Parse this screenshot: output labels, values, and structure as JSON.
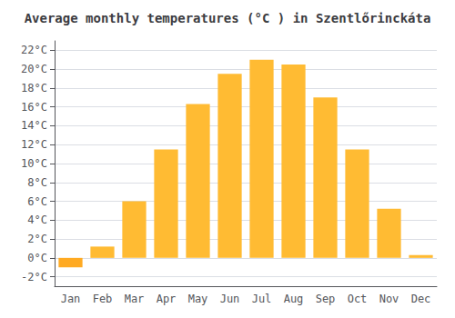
{
  "chart_data": {
    "type": "bar",
    "title": "Average monthly temperatures (°C ) in Szentlőrinckáta",
    "categories": [
      "Jan",
      "Feb",
      "Mar",
      "Apr",
      "May",
      "Jun",
      "Jul",
      "Aug",
      "Sep",
      "Oct",
      "Nov",
      "Dec"
    ],
    "values": [
      -1.0,
      1.2,
      6.0,
      11.5,
      16.3,
      19.5,
      21.0,
      20.5,
      17.0,
      11.5,
      5.2,
      0.3
    ],
    "colors": [
      "#FFAA22",
      "#FFBB33",
      "#FFBB33",
      "#FFBB33",
      "#FFBB33",
      "#FFBB33",
      "#FFBB33",
      "#FFBB33",
      "#FFBB33",
      "#FFBB33",
      "#FFBB33",
      "#FFBB33"
    ],
    "ylim": [
      -3,
      23
    ],
    "yticks": [
      {
        "value": -2,
        "label": "-2°C"
      },
      {
        "value": 0,
        "label": "0°C"
      },
      {
        "value": 2,
        "label": "2°C"
      },
      {
        "value": 4,
        "label": "4°C"
      },
      {
        "value": 6,
        "label": "6°C"
      },
      {
        "value": 8,
        "label": "8°C"
      },
      {
        "value": 10,
        "label": "10°C"
      },
      {
        "value": 12,
        "label": "12°C"
      },
      {
        "value": 14,
        "label": "14°C"
      },
      {
        "value": 16,
        "label": "16°C"
      },
      {
        "value": 18,
        "label": "18°C"
      },
      {
        "value": 20,
        "label": "20°C"
      },
      {
        "value": 22,
        "label": "22°C"
      }
    ],
    "grid": true
  }
}
